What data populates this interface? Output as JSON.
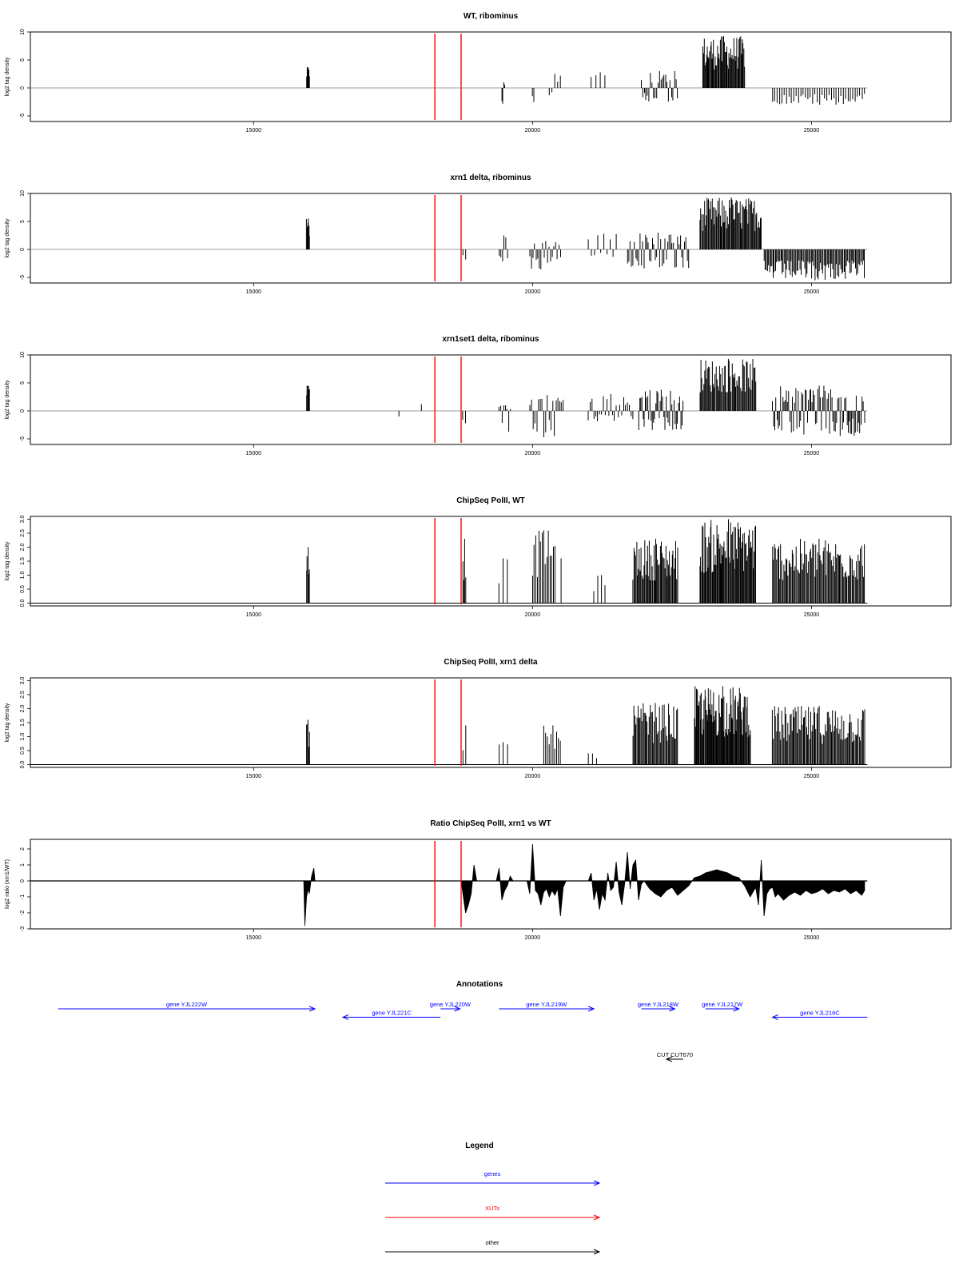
{
  "chart_data": [
    {
      "type": "bar",
      "title": "WT, ribominus",
      "ylabel": "log2 tag density",
      "ylim": [
        -6,
        10
      ],
      "yticks": [
        -5,
        0,
        5,
        10
      ],
      "xlim": [
        11000,
        27500
      ],
      "xticks": [
        15000,
        20000,
        25000
      ],
      "baseline": {
        "x": [
          11000,
          26000
        ],
        "color": "#999999"
      },
      "markers": {
        "x": [
          18250,
          18720
        ],
        "color": "#ff0000"
      },
      "signal_regions": [
        {
          "x": [
            15950,
            16000
          ],
          "min": 0,
          "max": 3.7,
          "density": 6
        },
        {
          "x": [
            19450,
            19500
          ],
          "min": -3.3,
          "max": 1.0,
          "density": 4
        },
        {
          "x": [
            20000,
            20020
          ],
          "min": -2.5,
          "max": 0,
          "density": 2
        },
        {
          "x": [
            20300,
            20500
          ],
          "min": -1.5,
          "max": 2.5,
          "density": 5
        },
        {
          "x": [
            21050,
            21300
          ],
          "min": 0,
          "max": 2.8,
          "density": 4
        },
        {
          "x": [
            21950,
            22600
          ],
          "min": -2.8,
          "max": 3.0,
          "density": 25
        },
        {
          "x": [
            23050,
            23800
          ],
          "min": 0,
          "max": 9.3,
          "density": 55
        },
        {
          "x": [
            24300,
            25950
          ],
          "min": -3.0,
          "max": 0,
          "density": 40
        }
      ]
    },
    {
      "type": "bar",
      "title": "xrn1 delta, ribominus",
      "ylabel": "log2 tag density",
      "ylim": [
        -6,
        10
      ],
      "yticks": [
        -5,
        0,
        5,
        10
      ],
      "xlim": [
        11000,
        27500
      ],
      "xticks": [
        15000,
        20000,
        25000
      ],
      "baseline": {
        "x": [
          11000,
          26000
        ],
        "color": "#999999"
      },
      "markers": {
        "x": [
          18250,
          18720
        ],
        "color": "#ff0000"
      },
      "signal_regions": [
        {
          "x": [
            15950,
            16000
          ],
          "min": 0,
          "max": 5.5,
          "density": 6
        },
        {
          "x": [
            18750,
            18800
          ],
          "min": -1.8,
          "max": 0,
          "density": 2
        },
        {
          "x": [
            19400,
            19550
          ],
          "min": -3.5,
          "max": 2.5,
          "density": 6
        },
        {
          "x": [
            19950,
            20500
          ],
          "min": -3.8,
          "max": 1.5,
          "density": 20
        },
        {
          "x": [
            21000,
            21500
          ],
          "min": -1.5,
          "max": 2.8,
          "density": 10
        },
        {
          "x": [
            21700,
            22800
          ],
          "min": -3.5,
          "max": 3.0,
          "density": 45
        },
        {
          "x": [
            23000,
            24100
          ],
          "min": 0,
          "max": 9.3,
          "density": 70
        },
        {
          "x": [
            24150,
            25950
          ],
          "min": -5.5,
          "max": 0,
          "density": 90
        }
      ]
    },
    {
      "type": "bar",
      "title": "xrn1set1 delta, ribominus",
      "ylabel": "log2 tag density",
      "ylim": [
        -6,
        10
      ],
      "yticks": [
        -5,
        0,
        5,
        10
      ],
      "xlim": [
        11000,
        27500
      ],
      "xticks": [
        15000,
        20000,
        25000
      ],
      "baseline": {
        "x": [
          11000,
          26000
        ],
        "color": "#999999"
      },
      "markers": {
        "x": [
          18250,
          18720
        ],
        "color": "#ff0000"
      },
      "signal_regions": [
        {
          "x": [
            15950,
            16000
          ],
          "min": 0,
          "max": 4.5,
          "density": 6
        },
        {
          "x": [
            17600,
            17620
          ],
          "min": -1.0,
          "max": 0,
          "density": 1
        },
        {
          "x": [
            18000,
            18020
          ],
          "min": 0,
          "max": 1.2,
          "density": 1
        },
        {
          "x": [
            18750,
            18800
          ],
          "min": -2.2,
          "max": 0,
          "density": 2
        },
        {
          "x": [
            19400,
            19600
          ],
          "min": -3.8,
          "max": 1.0,
          "density": 8
        },
        {
          "x": [
            19950,
            20550
          ],
          "min": -5.0,
          "max": 2.8,
          "density": 20
        },
        {
          "x": [
            21000,
            21800
          ],
          "min": -2.0,
          "max": 3.0,
          "density": 25
        },
        {
          "x": [
            21900,
            22700
          ],
          "min": -3.5,
          "max": 3.8,
          "density": 40
        },
        {
          "x": [
            23000,
            24000
          ],
          "min": 0,
          "max": 9.3,
          "density": 60
        },
        {
          "x": [
            24300,
            25950
          ],
          "min": -4.5,
          "max": 4.5,
          "density": 80
        }
      ]
    },
    {
      "type": "bar",
      "title": "ChipSeq PolII, WT",
      "ylabel": "log2 tag density",
      "ylim": [
        -0.1,
        3.1
      ],
      "yticks": [
        0.0,
        0.5,
        1.0,
        1.5,
        2.0,
        2.5,
        3.0
      ],
      "ytick_labels": [
        "0.0",
        "0.5",
        "1.0",
        "1.5",
        "2.0",
        "2.5",
        "3.0"
      ],
      "xlim": [
        11000,
        27500
      ],
      "xticks": [
        15000,
        20000,
        25000
      ],
      "baseline": {
        "x": [
          11000,
          26000
        ],
        "color": "#000000"
      },
      "markers": {
        "x": [
          18250,
          18720
        ],
        "color": "#ff0000"
      },
      "signal_regions": [
        {
          "x": [
            15950,
            16000
          ],
          "min": 0,
          "max": 2.0,
          "density": 5
        },
        {
          "x": [
            18750,
            18800
          ],
          "min": 0,
          "max": 2.3,
          "density": 4
        },
        {
          "x": [
            19400,
            19550
          ],
          "min": 0,
          "max": 1.6,
          "density": 3
        },
        {
          "x": [
            20000,
            20400
          ],
          "min": 0,
          "max": 2.6,
          "density": 15
        },
        {
          "x": [
            20500,
            20520
          ],
          "min": 0,
          "max": 1.6,
          "density": 1
        },
        {
          "x": [
            21100,
            21300
          ],
          "min": 0,
          "max": 1.0,
          "density": 4
        },
        {
          "x": [
            21800,
            22600
          ],
          "min": 0,
          "max": 2.3,
          "density": 50
        },
        {
          "x": [
            23000,
            24000
          ],
          "min": 0,
          "max": 3.0,
          "density": 70
        },
        {
          "x": [
            24300,
            25950
          ],
          "min": 0,
          "max": 2.3,
          "density": 90
        }
      ]
    },
    {
      "type": "bar",
      "title": "ChipSeq PolII, xrn1 delta",
      "ylabel": "log2 tag density",
      "ylim": [
        -0.1,
        3.1
      ],
      "yticks": [
        0.0,
        0.5,
        1.0,
        1.5,
        2.0,
        2.5,
        3.0
      ],
      "ytick_labels": [
        "0.0",
        "0.5",
        "1.0",
        "1.5",
        "2.0",
        "2.5",
        "3.0"
      ],
      "xlim": [
        11000,
        27500
      ],
      "xticks": [
        15000,
        20000,
        25000
      ],
      "baseline": {
        "x": [
          11000,
          26000
        ],
        "color": "#000000"
      },
      "markers": {
        "x": [
          18250,
          18720
        ],
        "color": "#ff0000"
      },
      "signal_regions": [
        {
          "x": [
            15950,
            16000
          ],
          "min": 0,
          "max": 1.6,
          "density": 5
        },
        {
          "x": [
            18750,
            18800
          ],
          "min": 0,
          "max": 1.4,
          "density": 2
        },
        {
          "x": [
            19400,
            19550
          ],
          "min": 0,
          "max": 0.8,
          "density": 3
        },
        {
          "x": [
            20200,
            20500
          ],
          "min": 0,
          "max": 1.4,
          "density": 10
        },
        {
          "x": [
            21000,
            21150
          ],
          "min": 0,
          "max": 0.4,
          "density": 3
        },
        {
          "x": [
            21800,
            22600
          ],
          "min": 0,
          "max": 2.2,
          "density": 45
        },
        {
          "x": [
            22900,
            23900
          ],
          "min": 0,
          "max": 2.8,
          "density": 80
        },
        {
          "x": [
            24300,
            25950
          ],
          "min": 0,
          "max": 2.1,
          "density": 90
        }
      ]
    },
    {
      "type": "area",
      "title": "Ratio ChipSeq PolII, xrn1 vs WT",
      "ylabel": "log2 ratio (xrn1/WT)",
      "ylim": [
        -3.0,
        2.6
      ],
      "yticks": [
        -3,
        -2,
        -1,
        0,
        1,
        2
      ],
      "xlim": [
        11000,
        27500
      ],
      "xticks": [
        15000,
        20000,
        25000
      ],
      "baseline": {
        "x": [
          11000,
          26000
        ],
        "color": "#000000"
      },
      "markers": {
        "x": [
          18250,
          18720
        ],
        "color": "#ff0000"
      },
      "x": [
        15900,
        15920,
        15950,
        15980,
        16000,
        16040,
        16080,
        16100,
        18720,
        18800,
        18850,
        18900,
        18950,
        19000,
        19350,
        19400,
        19450,
        19500,
        19550,
        19600,
        19650,
        19900,
        19950,
        20000,
        20050,
        20100,
        20150,
        20200,
        20250,
        20300,
        20350,
        20400,
        20450,
        20500,
        20550,
        20600,
        21000,
        21050,
        21100,
        21150,
        21200,
        21250,
        21300,
        21350,
        21400,
        21450,
        21500,
        21550,
        21600,
        21650,
        21700,
        21750,
        21800,
        21850,
        21900,
        21950,
        22000,
        22100,
        22200,
        22300,
        22400,
        22500,
        22600,
        22700,
        22800,
        22900,
        23000,
        23100,
        23200,
        23300,
        23400,
        23500,
        23600,
        23700,
        23800,
        23900,
        24000,
        24050,
        24100,
        24150,
        24200,
        24250,
        24300,
        24350,
        24400,
        24500,
        24600,
        24700,
        24800,
        24900,
        25000,
        25100,
        25200,
        25300,
        25400,
        25500,
        25600,
        25700,
        25800,
        25900,
        25950
      ],
      "values": [
        0,
        -2.8,
        -1.0,
        -0.5,
        -0.8,
        0.3,
        0.8,
        0,
        0,
        -2.0,
        -1.5,
        -0.8,
        1.0,
        0,
        0,
        0.8,
        -1.2,
        -0.6,
        -0.3,
        0.3,
        0,
        0,
        -0.8,
        2.3,
        -0.6,
        -0.8,
        -1.5,
        -0.7,
        -0.5,
        -1.0,
        -0.6,
        -0.9,
        -0.5,
        -2.2,
        -0.4,
        0,
        0,
        0.5,
        -1.2,
        -0.5,
        -1.8,
        -0.8,
        -1.2,
        0.5,
        -0.6,
        -0.4,
        1.2,
        -0.7,
        -1.5,
        -0.2,
        1.8,
        -0.5,
        1.0,
        1.3,
        -1.2,
        -0.2,
        0,
        -0.5,
        -0.8,
        -1.0,
        -0.6,
        -0.4,
        -0.9,
        -0.6,
        -0.3,
        0.2,
        0.3,
        0.5,
        0.6,
        0.7,
        0.6,
        0.5,
        0.3,
        0.2,
        -0.3,
        -1.0,
        -0.4,
        -1.5,
        1.3,
        -2.2,
        -0.8,
        -0.5,
        -0.4,
        -1.0,
        -0.8,
        -1.2,
        -0.9,
        -0.7,
        -0.9,
        -0.6,
        -0.8,
        -0.7,
        -0.5,
        -0.8,
        -0.6,
        -0.7,
        -0.5,
        -0.8,
        -0.6,
        -0.9,
        -0.6
      ]
    }
  ],
  "annotations": {
    "title": "Annotations",
    "features": [
      {
        "label": "gene YJL222W",
        "start": 11500,
        "end": 16100,
        "strand": "+",
        "category": "gene",
        "row": 0
      },
      {
        "label": "gene YJL221C",
        "start": 16600,
        "end": 18350,
        "strand": "-",
        "category": "gene",
        "row": 1
      },
      {
        "label": "gene YJL220W",
        "start": 18350,
        "end": 18700,
        "strand": "+",
        "category": "gene",
        "row": 0
      },
      {
        "label": "gene YJL219W",
        "start": 19400,
        "end": 21100,
        "strand": "+",
        "category": "gene",
        "row": 0
      },
      {
        "label": "gene YJL218W",
        "start": 21950,
        "end": 22550,
        "strand": "+",
        "category": "gene",
        "row": 0
      },
      {
        "label": "gene YJL217W",
        "start": 23100,
        "end": 23700,
        "strand": "+",
        "category": "gene",
        "row": 0
      },
      {
        "label": "gene YJL216C",
        "start": 24300,
        "end": 26000,
        "strand": "-",
        "category": "gene",
        "row": 1
      },
      {
        "label": "CUT CUT670",
        "start": 22400,
        "end": 22700,
        "strand": "-",
        "category": "other",
        "row": 6
      }
    ]
  },
  "legend": {
    "title": "Legend",
    "entries": [
      {
        "label": "genes",
        "color": "#0000ff"
      },
      {
        "label": "XUTs",
        "color": "#ff0000"
      },
      {
        "label": "other",
        "color": "#000000"
      }
    ]
  },
  "colors": {
    "axis": "#000000",
    "signal": "#000000",
    "marker": "#ff0000",
    "gene": "#0000ff",
    "other": "#000000"
  }
}
